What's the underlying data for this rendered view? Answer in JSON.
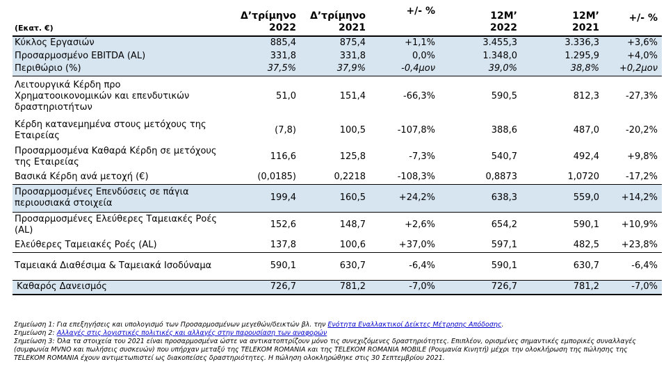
{
  "header": {
    "units": "(Εκατ. €)",
    "col1": [
      "Δ’τρίμηνο",
      "2022"
    ],
    "col2": [
      "Δ’τρίμηνο",
      "2021"
    ],
    "col3": [
      "+/- %",
      ""
    ],
    "col4": [
      "12M’",
      "2022"
    ],
    "col5": [
      "12M’",
      "2021"
    ],
    "col6": [
      "+/- %",
      ""
    ]
  },
  "rows": [
    {
      "label": "Κύκλος Εργασιών",
      "v": [
        "885,4",
        "875,4",
        "+1,1%",
        "3.455,3",
        "3.336,3",
        "+3,6%"
      ]
    },
    {
      "label": "Προσαρμοσμένο EBITDA (AL)",
      "v": [
        "331,8",
        "331,8",
        "0,0%",
        "1.348,0",
        "1.295,9",
        "+4,0%"
      ]
    },
    {
      "label": "Περιθώριο (%)",
      "v": [
        "37,5%",
        "37,9%",
        "-0,4μον",
        "39,0%",
        "38,8%",
        "+0,2μον"
      ]
    },
    {
      "label": "Λειτουργικά Κέρδη προ Χρηματοοικονομικών και επενδυτικών δραστηριοτήτων",
      "v": [
        "51,0",
        "151,4",
        "-66,3%",
        "590,5",
        "812,3",
        "-27,3%"
      ]
    },
    {
      "label": "Κέρδη κατανεμημένα στους μετόχους της Εταιρείας",
      "v": [
        "(7,8)",
        "100,5",
        "-107,8%",
        "388,6",
        "487,0",
        "-20,2%"
      ]
    },
    {
      "label": "Προσαρμοσμένα Καθαρά Κέρδη σε μετόχους της Εταιρείας",
      "v": [
        "116,6",
        "125,8",
        "-7,3%",
        "540,7",
        "492,4",
        "+9,8%"
      ]
    },
    {
      "label": "Βασικά Κέρδη ανά μετοχή (€)",
      "v": [
        "(0,0185)",
        "0,2218",
        "-108,3%",
        "0,8873",
        "1,0720",
        "-17,2%"
      ]
    },
    {
      "label": "Προσαρμοσμένες Επενδύσεις σε πάγια περιουσιακά στοιχεία",
      "v": [
        "199,4",
        "160,5",
        "+24,2%",
        "638,3",
        "559,0",
        "+14,2%"
      ]
    },
    {
      "label": "Προσαρμοσμένες Ελεύθερες Ταμειακές Ροές (AL)",
      "v": [
        "152,6",
        "148,7",
        "+2,6%",
        "654,2",
        "590,1",
        "+10,9%"
      ]
    },
    {
      "label": "Ελεύθερες Ταμειακές Ροές (AL)",
      "v": [
        "137,8",
        "100,6",
        "+37,0%",
        "597,1",
        "482,5",
        "+23,8%"
      ]
    },
    {
      "label": "Ταμειακά Διαθέσιμα & Ταμειακά Ισοδύναμα",
      "v": [
        "590,1",
        "630,7",
        "-6,4%",
        "590,1",
        "630,7",
        "-6,4%"
      ]
    },
    {
      "label": "Καθαρός Δανεισμός",
      "v": [
        "726,7",
        "781,2",
        "-7,0%",
        "726,7",
        "781,2",
        "-7,0%"
      ]
    }
  ],
  "notes": {
    "n1_prefix": "Σημείωση 1: Για επεξηγήσεις και υπολογισμό των Προσαρμοσμένων μεγεθών/δεικτών βλ. την ",
    "n1_link": "Ενότητα Εναλλακτικοί Δείκτες Μέτρησης Απόδοσης",
    "n1_suffix": ".",
    "n2_prefix": "Σημείωση 2: ",
    "n2_link": "Αλλαγές στις λογιστικές πολιτικές και αλλαγές στην παρουσίαση των αναφορών",
    "n3": "Σημείωση 3: Όλα τα στοιχεία του 2021 είναι προσαρμοσμένα ώστε να αντικατοπτρίζουν μόνο τις συνεχιζόμενες δραστηριότητες. Επιπλέον, ορισμένες σημαντικές εμπορικές συναλλαγές (συμφωνία MVNO και πωλήσεις συσκευών) που υπήρχαν μεταξύ της TELEKOM ROMANIA και της TELEKOM ROMANIA MOBILE (Ρουμανία Κινητή) μέχρι την ολοκλήρωση της πώλησης της TELEKOM ROMANIA έχουν αντιμετωπιστεί ως διακοπείσες δραστηριότητες. Η πώληση ολοκληρώθηκε στις 30 Σεπτεμβρίου 2021."
  }
}
